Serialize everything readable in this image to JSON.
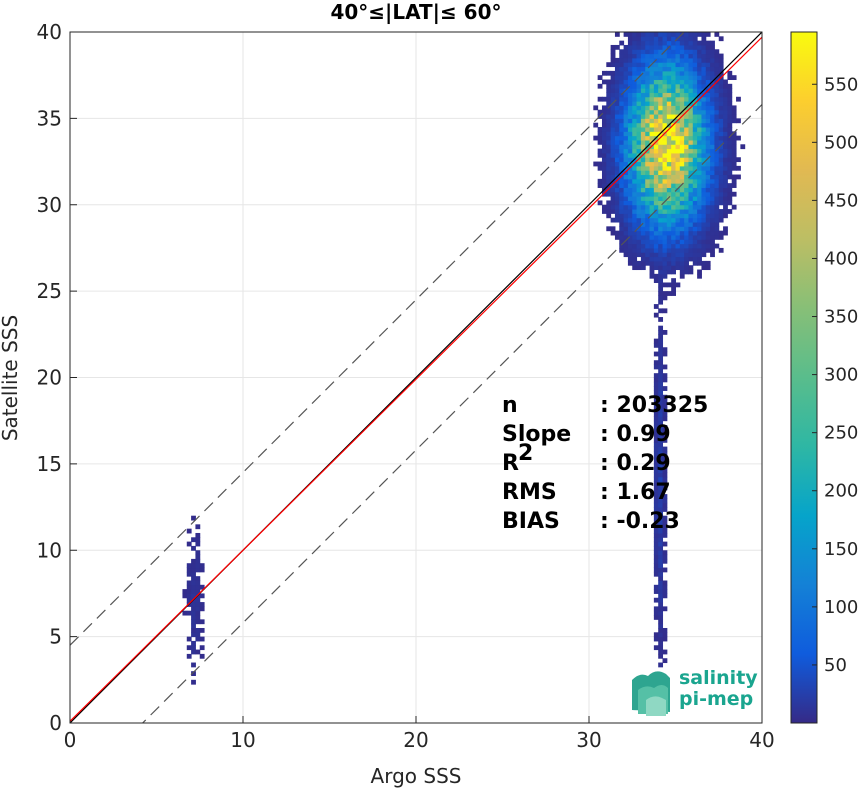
{
  "chart_data": {
    "type": "heatmap",
    "title": "40°≤|LAT|≤ 60°",
    "xlabel": "Argo SSS",
    "ylabel": "Satellite SSS",
    "xlim": [
      0,
      40
    ],
    "ylim": [
      0,
      40
    ],
    "xticks": [
      "0",
      "10",
      "20",
      "30",
      "40"
    ],
    "yticks": [
      "0",
      "5",
      "10",
      "15",
      "20",
      "25",
      "30",
      "35",
      "40"
    ],
    "grid": true,
    "colorbar": {
      "range": [
        0,
        595
      ],
      "ticks": [
        "50",
        "100",
        "150",
        "200",
        "250",
        "300",
        "350",
        "400",
        "450",
        "500",
        "550"
      ],
      "colormap": "parula"
    },
    "lines": [
      {
        "name": "1:1",
        "color": "#000000",
        "style": "solid",
        "slope": 1.0,
        "intercept": 0.0
      },
      {
        "name": "fit",
        "color": "#ff0000",
        "style": "solid",
        "slope": 0.99,
        "intercept": 0.1
      },
      {
        "name": "upper bound",
        "color": "#555555",
        "style": "dashed",
        "slope": 1.0,
        "intercept": 4.5
      },
      {
        "name": "lower bound",
        "color": "#555555",
        "style": "dashed",
        "slope": 1.0,
        "intercept": -4.2
      }
    ],
    "density_clusters": [
      {
        "x_center": 34.5,
        "y_center": 33.5,
        "x_spread": 1.3,
        "y_spread": 2.6,
        "peak": 590
      },
      {
        "x_center": 7.2,
        "y_center": 7.0,
        "x_spread": 0.35,
        "y_spread": 3.0,
        "peak": 10
      },
      {
        "x_center": 34.1,
        "y_center": 14.0,
        "x_spread": 0.2,
        "y_spread": 6.0,
        "peak": 25
      }
    ],
    "stats": [
      {
        "label": "n",
        "value": ": 203325"
      },
      {
        "label": "Slope",
        "value": ": 0.99"
      },
      {
        "label": "R",
        "sup": "2",
        "value": ": 0.29"
      },
      {
        "label": "RMS",
        "value": ": 1.67"
      },
      {
        "label": "BIAS",
        "value": ": -0.23"
      }
    ]
  },
  "logo": {
    "line1": "salinity",
    "line2": "pi-mep"
  }
}
